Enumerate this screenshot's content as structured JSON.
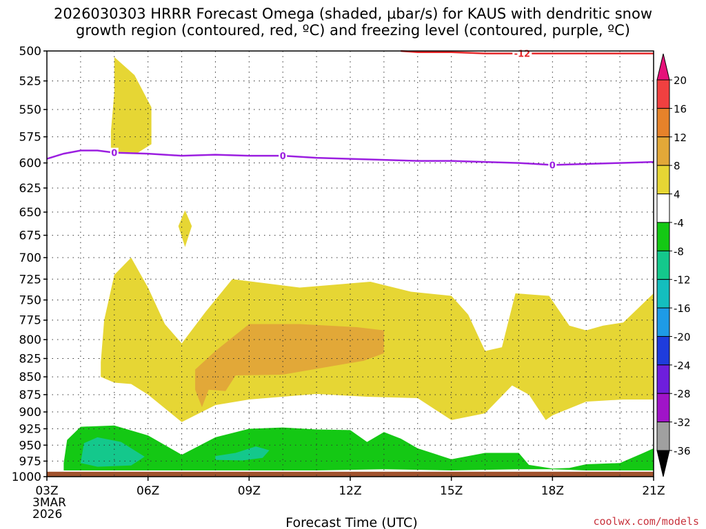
{
  "title": {
    "line1": "2026030303 HRRR Forecast Omega (shaded, µbar/s) for KAUS with dendritic snow",
    "line2": "growth region (contoured, red, ºC) and freezing level (contoured, purple, ºC)"
  },
  "credit": "coolwx.com/models",
  "chart_data": {
    "type": "heatmap",
    "xlabel": "Forecast Time (UTC)",
    "x_ticks": [
      "03Z",
      "06Z",
      "09Z",
      "12Z",
      "15Z",
      "18Z",
      "21Z"
    ],
    "x_first_date": [
      "3MAR",
      "2026"
    ],
    "x_range_hours": [
      3,
      21
    ],
    "y_ticks": [
      "500",
      "525",
      "550",
      "575",
      "600",
      "625",
      "650",
      "675",
      "700",
      "725",
      "750",
      "775",
      "800",
      "825",
      "850",
      "875",
      "900",
      "925",
      "950",
      "975",
      "1000"
    ],
    "y_range_hpa": [
      500,
      1000
    ],
    "y_scale": "log-pressure (inverted)",
    "grid": true,
    "colorbar": {
      "labels": [
        "20",
        "16",
        "12",
        "8",
        "4",
        "-4",
        "-8",
        "-12",
        "-16",
        "-20",
        "-24",
        "-28",
        "-32",
        "-36"
      ],
      "colors": [
        "#e6127a",
        "#f04040",
        "#e6822a",
        "#e2a838",
        "#e6d634",
        "#ffffff",
        "#14c814",
        "#14c88c",
        "#14bebe",
        "#1e9be6",
        "#1e3cdc",
        "#6e1edc",
        "#a014c8",
        "#a0a0a0",
        "#000000"
      ]
    },
    "omega_regions": [
      {
        "level": "4 to 8",
        "color": "#e6d634",
        "points": [
          [
            5.0,
            505
          ],
          [
            5.6,
            520
          ],
          [
            6.1,
            548
          ],
          [
            6.1,
            582
          ],
          [
            5.7,
            590
          ],
          [
            4.9,
            589
          ],
          [
            4.9,
            570
          ],
          [
            5.0,
            535
          ]
        ]
      },
      {
        "level": "4 to 8",
        "color": "#e6d634",
        "points": [
          [
            4.6,
            830
          ],
          [
            4.7,
            775
          ],
          [
            5.0,
            720
          ],
          [
            5.5,
            700
          ],
          [
            6.0,
            735
          ],
          [
            6.5,
            780
          ],
          [
            7.0,
            805
          ],
          [
            7.7,
            765
          ],
          [
            8.5,
            725
          ],
          [
            10.5,
            735
          ],
          [
            12.6,
            728
          ],
          [
            13.8,
            740
          ],
          [
            15.0,
            745
          ],
          [
            15.5,
            768
          ],
          [
            16.0,
            815
          ],
          [
            16.5,
            810
          ],
          [
            16.9,
            742
          ],
          [
            17.9,
            745
          ],
          [
            18.5,
            782
          ],
          [
            19.0,
            788
          ],
          [
            19.5,
            782
          ],
          [
            20.1,
            778
          ],
          [
            21.0,
            742
          ],
          [
            21.0,
            882
          ],
          [
            20.1,
            882
          ],
          [
            19.0,
            885
          ],
          [
            18.0,
            905
          ],
          [
            17.8,
            912
          ],
          [
            17.3,
            875
          ],
          [
            16.8,
            862
          ],
          [
            16.0,
            902
          ],
          [
            15.0,
            912
          ],
          [
            14.0,
            880
          ],
          [
            12.5,
            878
          ],
          [
            11.0,
            874
          ],
          [
            9.0,
            882
          ],
          [
            8.0,
            890
          ],
          [
            7.0,
            915
          ],
          [
            6.0,
            875
          ],
          [
            5.5,
            860
          ],
          [
            5.0,
            858
          ],
          [
            4.6,
            850
          ]
        ]
      },
      {
        "level": "4 to 8",
        "color": "#e6d634",
        "points": [
          [
            7.1,
            648
          ],
          [
            7.3,
            665
          ],
          [
            7.1,
            688
          ],
          [
            6.9,
            665
          ]
        ]
      },
      {
        "level": "8 to 12",
        "color": "#e2a838",
        "points": [
          [
            7.4,
            840
          ],
          [
            8.0,
            815
          ],
          [
            9.0,
            780
          ],
          [
            10.5,
            780
          ],
          [
            12.2,
            784
          ],
          [
            13.0,
            788
          ],
          [
            13.0,
            818
          ],
          [
            12.4,
            828
          ],
          [
            10.0,
            847
          ],
          [
            8.6,
            848
          ],
          [
            8.3,
            870
          ],
          [
            7.8,
            868
          ],
          [
            7.6,
            893
          ],
          [
            7.4,
            868
          ]
        ]
      },
      {
        "level": "-8 to -4",
        "color": "#14c814",
        "points": [
          [
            3.5,
            978
          ],
          [
            3.6,
            942
          ],
          [
            4.0,
            922
          ],
          [
            5.0,
            920
          ],
          [
            6.0,
            935
          ],
          [
            7.0,
            965
          ],
          [
            8.0,
            938
          ],
          [
            9.0,
            925
          ],
          [
            10.0,
            923
          ],
          [
            11.0,
            926
          ],
          [
            12.0,
            927
          ],
          [
            12.5,
            945
          ],
          [
            13.0,
            930
          ],
          [
            13.5,
            940
          ],
          [
            14.0,
            955
          ],
          [
            15.0,
            972
          ],
          [
            16.0,
            962
          ],
          [
            17.0,
            962
          ],
          [
            17.3,
            981
          ],
          [
            18.0,
            987
          ],
          [
            18.5,
            986
          ],
          [
            19.0,
            980
          ],
          [
            20.0,
            978
          ],
          [
            20.7,
            962
          ],
          [
            21.0,
            955
          ],
          [
            21.0,
            990
          ],
          [
            20.0,
            990
          ],
          [
            19.0,
            990
          ],
          [
            18.0,
            988
          ],
          [
            17.0,
            988
          ],
          [
            15.0,
            990
          ],
          [
            13.0,
            988
          ],
          [
            11.0,
            990
          ],
          [
            9.0,
            990
          ],
          [
            7.0,
            990
          ],
          [
            5.0,
            990
          ],
          [
            4.0,
            990
          ],
          [
            3.5,
            990
          ]
        ]
      },
      {
        "level": "-12 to -8",
        "color": "#14c88c",
        "points": [
          [
            4.0,
            978
          ],
          [
            4.1,
            947
          ],
          [
            4.5,
            938
          ],
          [
            5.2,
            945
          ],
          [
            5.9,
            968
          ],
          [
            5.5,
            982
          ],
          [
            4.5,
            984
          ]
        ]
      },
      {
        "level": "-12 to -8",
        "color": "#14c88c",
        "points": [
          [
            8.0,
            967
          ],
          [
            8.6,
            962
          ],
          [
            9.2,
            952
          ],
          [
            9.6,
            958
          ],
          [
            9.4,
            970
          ],
          [
            8.8,
            974
          ],
          [
            8.0,
            973
          ]
        ]
      }
    ],
    "contours": [
      {
        "name": "0",
        "color": "#9b1ee0",
        "label": "0",
        "points": [
          [
            3.0,
            596
          ],
          [
            3.5,
            591
          ],
          [
            4.0,
            588
          ],
          [
            4.5,
            588
          ],
          [
            5.0,
            590
          ],
          [
            6.0,
            591
          ],
          [
            7.0,
            593
          ],
          [
            8.0,
            592
          ],
          [
            9.0,
            593
          ],
          [
            10.0,
            593
          ],
          [
            11.0,
            595
          ],
          [
            12.0,
            596
          ],
          [
            13.0,
            597
          ],
          [
            14.0,
            598
          ],
          [
            15.0,
            598
          ],
          [
            16.0,
            599
          ],
          [
            17.0,
            600
          ],
          [
            18.0,
            602
          ],
          [
            19.0,
            601
          ],
          [
            20.0,
            600
          ],
          [
            21.0,
            599
          ]
        ],
        "label_x": [
          5.0,
          10.0,
          18.0
        ]
      },
      {
        "name": "-12",
        "color": "#e6282a",
        "label": "-12",
        "points": [
          [
            13.5,
            500
          ],
          [
            14.0,
            501
          ],
          [
            15.0,
            501
          ],
          [
            16.0,
            502
          ],
          [
            17.0,
            502
          ],
          [
            18.0,
            502
          ],
          [
            19.0,
            502
          ],
          [
            20.0,
            502
          ],
          [
            21.0,
            502
          ]
        ],
        "label_x": [
          17.1
        ]
      }
    ],
    "ground_band": {
      "color": "#a0522d",
      "from_hpa": 992,
      "to_hpa": 1000
    }
  }
}
